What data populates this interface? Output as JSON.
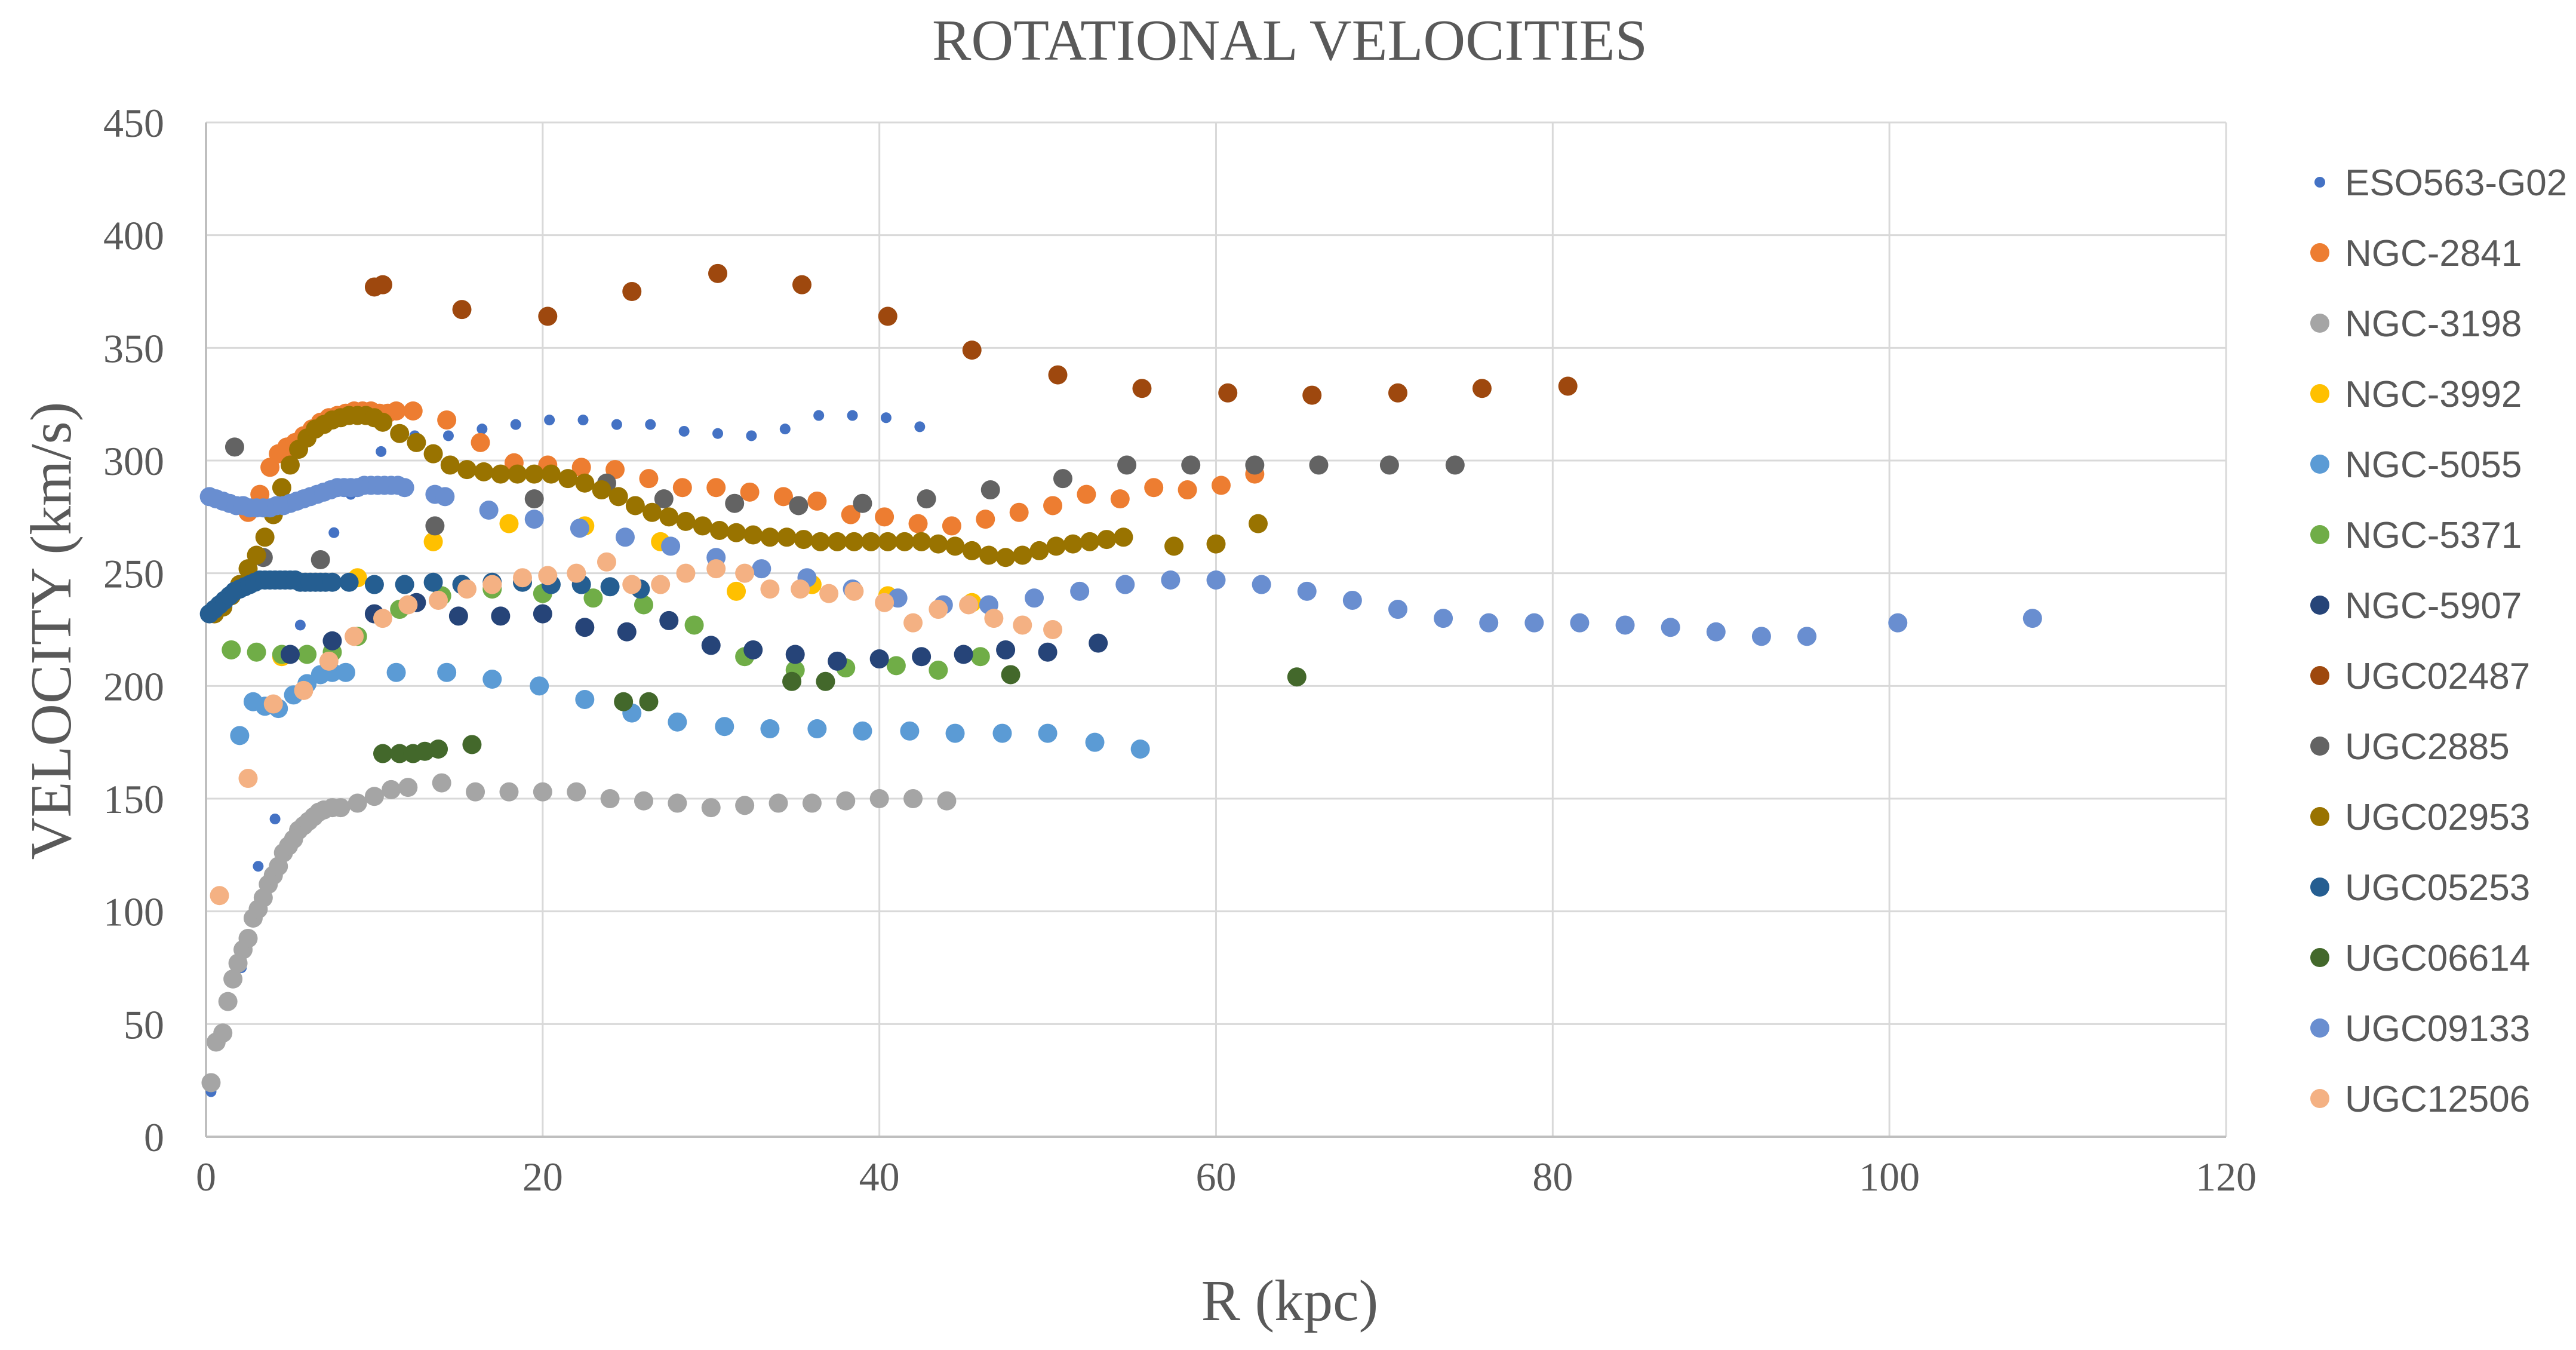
{
  "chart_data": {
    "type": "scatter",
    "title": "ROTATIONAL VELOCITIES",
    "xlabel": "R (kpc)",
    "ylabel": "VELOCITY (km/s)",
    "xlim": [
      0,
      120
    ],
    "ylim": [
      0,
      450
    ],
    "xticks": [
      0,
      20,
      40,
      60,
      80,
      100,
      120
    ],
    "yticks": [
      0,
      50,
      100,
      150,
      200,
      250,
      300,
      350,
      400,
      450
    ],
    "grid": true,
    "legend_position": "right",
    "series": [
      {
        "name": "ESO563-G02",
        "color": "#4472C4",
        "marker": "small",
        "x": [
          0.3,
          2.1,
          3.1,
          4.1,
          5.6,
          7.6,
          8.6,
          10.4,
          12.4,
          14.4,
          16.4,
          18.4,
          20.4,
          22.4,
          24.4,
          26.4,
          28.4,
          30.4,
          32.4,
          34.4,
          36.4,
          38.4,
          40.4,
          42.4
        ],
        "y": [
          20,
          75,
          120,
          141,
          227,
          268,
          285,
          304,
          311,
          311,
          314,
          316,
          318,
          318,
          316,
          316,
          313,
          312,
          311,
          314,
          320,
          320,
          319,
          315
        ]
      },
      {
        "name": "NGC-2841",
        "color": "#ED7D31",
        "x": [
          2.5,
          3.2,
          3.8,
          4.3,
          4.8,
          5.3,
          5.8,
          6.3,
          6.8,
          7.3,
          7.8,
          8.3,
          8.8,
          9.3,
          9.8,
          10.3,
          10.8,
          11.3,
          12.3,
          14.3,
          16.3,
          18.3,
          20.3,
          22.3,
          24.3,
          26.3,
          28.3,
          30.3,
          32.3,
          34.3,
          36.3,
          38.3,
          40.3,
          42.3,
          44.3,
          46.3,
          48.3,
          50.3,
          52.3,
          54.3,
          56.3,
          58.3,
          60.3,
          62.3
        ],
        "y": [
          277,
          285,
          297,
          303,
          306,
          308,
          311,
          314,
          317,
          319,
          320,
          321,
          322,
          322,
          322,
          321,
          321,
          322,
          322,
          318,
          308,
          299,
          298,
          297,
          296,
          292,
          288,
          288,
          286,
          284,
          282,
          276,
          275,
          272,
          271,
          274,
          277,
          280,
          285,
          283,
          288,
          287,
          289,
          294
        ]
      },
      {
        "name": "NGC-3198",
        "color": "#A5A5A5",
        "x": [
          0.3,
          0.6,
          1.0,
          1.3,
          1.6,
          1.9,
          2.2,
          2.5,
          2.8,
          3.1,
          3.4,
          3.7,
          4.0,
          4.3,
          4.6,
          4.9,
          5.2,
          5.5,
          5.8,
          6.1,
          6.4,
          6.7,
          7.0,
          7.5,
          8.0,
          9.0,
          10.0,
          11.0,
          12.0,
          14.0,
          16.0,
          18.0,
          20.0,
          22.0,
          24.0,
          26.0,
          28.0,
          30.0,
          32.0,
          34.0,
          36.0,
          38.0,
          40.0,
          42.0,
          44.0
        ],
        "y": [
          24,
          42,
          46,
          60,
          70,
          77,
          83,
          88,
          97,
          101,
          106,
          112,
          116,
          120,
          126,
          129,
          132,
          136,
          138,
          140,
          142,
          144,
          145,
          146,
          146,
          148,
          151,
          154,
          155,
          157,
          153,
          153,
          153,
          153,
          150,
          149,
          148,
          146,
          147,
          148,
          148,
          149,
          150,
          150,
          149
        ]
      },
      {
        "name": "NGC-3992",
        "color": "#FFC000",
        "x": [
          4.5,
          9.0,
          13.5,
          18.0,
          22.5,
          27.0,
          31.5,
          36.0,
          40.5,
          45.5
        ],
        "y": [
          213,
          248,
          264,
          272,
          271,
          264,
          242,
          245,
          240,
          237
        ]
      },
      {
        "name": "NGC-5055",
        "color": "#5B9BD5",
        "x": [
          2.0,
          2.8,
          3.5,
          4.3,
          5.2,
          6.0,
          6.8,
          7.5,
          8.3,
          11.3,
          14.3,
          17.0,
          19.8,
          22.5,
          25.3,
          28.0,
          30.8,
          33.5,
          36.3,
          39.0,
          41.8,
          44.5,
          47.3,
          50.0,
          52.8,
          55.5
        ],
        "y": [
          178,
          193,
          191,
          190,
          196,
          201,
          205,
          206,
          206,
          206,
          206,
          203,
          200,
          194,
          188,
          184,
          182,
          181,
          181,
          180,
          180,
          179,
          179,
          179,
          175,
          172
        ]
      },
      {
        "name": "NGC-5371",
        "color": "#70AD47",
        "x": [
          1.5,
          3.0,
          4.5,
          6.0,
          7.5,
          9.0,
          11.5,
          14.0,
          17.0,
          20.0,
          23.0,
          26.0,
          29.0,
          32.0,
          35.0,
          38.0,
          41.0,
          43.5,
          46.0
        ],
        "y": [
          216,
          215,
          214,
          214,
          215,
          222,
          234,
          240,
          243,
          241,
          239,
          236,
          227,
          213,
          207,
          208,
          209,
          207,
          213
        ]
      },
      {
        "name": "NGC-5907",
        "color": "#264478",
        "x": [
          5.0,
          7.5,
          10.0,
          12.5,
          15.0,
          17.5,
          20.0,
          22.5,
          25.0,
          27.5,
          30.0,
          32.5,
          35.0,
          37.5,
          40.0,
          42.5,
          45.0,
          47.5,
          50.0,
          53.0
        ],
        "y": [
          214,
          220,
          232,
          237,
          231,
          231,
          232,
          226,
          224,
          229,
          218,
          216,
          214,
          211,
          212,
          213,
          214,
          216,
          215,
          219
        ]
      },
      {
        "name": "UGC02487",
        "color": "#9E480E",
        "x": [
          10.0,
          10.5,
          15.2,
          20.3,
          25.3,
          30.4,
          35.4,
          40.5,
          45.5,
          50.6,
          55.6,
          60.7,
          65.7,
          70.8,
          75.8,
          80.9
        ],
        "y": [
          377,
          378,
          367,
          364,
          375,
          383,
          378,
          364,
          349,
          338,
          332,
          330,
          329,
          330,
          332,
          333
        ]
      },
      {
        "name": "UGC2885",
        "color": "#636363",
        "x": [
          1.7,
          3.4,
          6.8,
          13.6,
          19.5,
          23.8,
          27.2,
          31.4,
          35.2,
          39.0,
          42.8,
          46.6,
          50.9,
          54.7,
          58.5,
          62.3,
          66.1,
          70.3,
          74.2
        ],
        "y": [
          306,
          257,
          256,
          271,
          283,
          290,
          283,
          281,
          280,
          281,
          283,
          287,
          292,
          298,
          298,
          298,
          298,
          298,
          298
        ]
      },
      {
        "name": "UGC02953",
        "color": "#997300",
        "x": [
          0.5,
          1.0,
          1.5,
          2.0,
          2.5,
          3.0,
          3.5,
          4.0,
          4.5,
          5.0,
          5.5,
          6.0,
          6.5,
          7.0,
          7.5,
          8.0,
          8.5,
          9.0,
          9.5,
          10.0,
          10.5,
          11.5,
          12.5,
          13.5,
          14.5,
          15.5,
          16.5,
          17.5,
          18.5,
          19.5,
          20.5,
          21.5,
          22.5,
          23.5,
          24.5,
          25.5,
          26.5,
          27.5,
          28.5,
          29.5,
          30.5,
          31.5,
          32.5,
          33.5,
          34.5,
          35.5,
          36.5,
          37.5,
          38.5,
          39.5,
          40.5,
          41.5,
          42.5,
          43.5,
          44.5,
          45.5,
          46.5,
          47.5,
          48.5,
          49.5,
          50.5,
          51.5,
          52.5,
          53.5,
          54.5,
          57.5,
          60.0,
          62.5
        ],
        "y": [
          232,
          235,
          240,
          245,
          252,
          258,
          266,
          276,
          288,
          298,
          305,
          310,
          314,
          316,
          318,
          319,
          320,
          320,
          320,
          319,
          317,
          312,
          308,
          303,
          298,
          296,
          295,
          294,
          294,
          294,
          294,
          292,
          290,
          287,
          284,
          280,
          277,
          275,
          273,
          271,
          269,
          268,
          267,
          266,
          266,
          265,
          264,
          264,
          264,
          264,
          264,
          264,
          264,
          263,
          262,
          260,
          258,
          257,
          258,
          260,
          262,
          263,
          264,
          265,
          266,
          262,
          263,
          272
        ]
      },
      {
        "name": "UGC05253",
        "color": "#255E91",
        "x": [
          0.2,
          0.5,
          0.8,
          1.1,
          1.4,
          1.7,
          2.0,
          2.3,
          2.6,
          2.9,
          3.2,
          3.5,
          3.8,
          4.1,
          4.4,
          4.7,
          5.0,
          5.3,
          5.6,
          5.9,
          6.2,
          6.5,
          6.8,
          7.1,
          7.5,
          8.5,
          10.0,
          11.8,
          13.5,
          15.2,
          17.0,
          18.8,
          20.5,
          22.3,
          24.0,
          25.8
        ],
        "y": [
          232,
          234,
          236,
          238,
          240,
          242,
          243,
          244,
          245,
          246,
          247,
          247,
          247,
          247,
          247,
          247,
          247,
          247,
          246,
          246,
          246,
          246,
          246,
          246,
          246,
          246,
          245,
          245,
          246,
          245,
          246,
          246,
          245,
          245,
          244,
          243
        ]
      },
      {
        "name": "UGC06614",
        "color": "#43682B",
        "x": [
          10.5,
          11.5,
          12.3,
          13.0,
          13.8,
          15.8,
          24.8,
          26.3,
          34.8,
          36.8,
          47.8,
          64.8
        ],
        "y": [
          170,
          170,
          170,
          171,
          172,
          174,
          193,
          193,
          202,
          202,
          205,
          204
        ]
      },
      {
        "name": "UGC09133",
        "color": "#698ED0",
        "x": [
          0.2,
          0.6,
          1.0,
          1.4,
          1.8,
          2.2,
          2.6,
          3.0,
          3.4,
          3.8,
          4.2,
          4.6,
          5.0,
          5.4,
          5.8,
          6.2,
          6.6,
          7.0,
          7.4,
          7.8,
          8.2,
          8.6,
          9.0,
          9.4,
          9.8,
          10.2,
          10.6,
          11.0,
          11.4,
          11.8,
          13.6,
          14.2,
          16.8,
          19.5,
          22.2,
          24.9,
          27.6,
          30.3,
          33.0,
          35.7,
          38.4,
          41.1,
          43.8,
          46.5,
          49.2,
          51.9,
          54.6,
          57.3,
          60.0,
          62.7,
          65.4,
          68.1,
          70.8,
          73.5,
          76.2,
          78.9,
          81.6,
          84.3,
          87.0,
          89.7,
          92.4,
          95.1,
          100.5,
          108.5
        ],
        "y": [
          284,
          283,
          282,
          281,
          280,
          280,
          279,
          279,
          279,
          279,
          280,
          280,
          281,
          282,
          283,
          284,
          285,
          286,
          287,
          288,
          288,
          288,
          288,
          289,
          289,
          289,
          289,
          289,
          289,
          288,
          285,
          284,
          278,
          274,
          270,
          266,
          262,
          257,
          252,
          248,
          243,
          239,
          236,
          236,
          239,
          242,
          245,
          247,
          247,
          245,
          242,
          238,
          234,
          230,
          228,
          228,
          228,
          227,
          226,
          224,
          222,
          222,
          228,
          230
        ]
      },
      {
        "name": "UGC12506",
        "color": "#F4B183",
        "x": [
          0.8,
          2.5,
          4.0,
          5.8,
          7.3,
          8.8,
          10.5,
          12.0,
          13.8,
          15.5,
          17.0,
          18.8,
          20.3,
          22.0,
          23.8,
          25.3,
          27.0,
          28.5,
          30.3,
          32.0,
          33.5,
          35.3,
          37.0,
          38.5,
          40.3,
          42.0,
          43.5,
          45.3,
          46.8,
          48.5,
          50.3
        ],
        "y": [
          107,
          159,
          192,
          198,
          211,
          222,
          230,
          236,
          238,
          243,
          245,
          248,
          249,
          250,
          255,
          245,
          245,
          250,
          252,
          250,
          243,
          243,
          241,
          242,
          237,
          228,
          234,
          236,
          230,
          227,
          225
        ]
      }
    ]
  }
}
